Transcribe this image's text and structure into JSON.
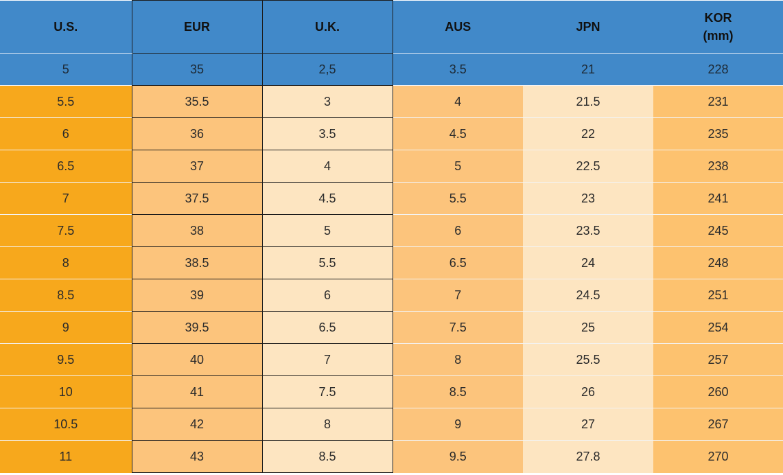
{
  "headers": {
    "us": "U.S.",
    "eur": "EUR",
    "uk": "U.K.",
    "aus": "AUS",
    "jpn": "JPN",
    "kor_line1": "KOR",
    "kor_line2": "(mm)"
  },
  "colors": {
    "header_blue": "#4189c9",
    "us_orange": "#f7a81c",
    "eur_peach": "#fcc47c",
    "uk_cream": "#fde5c1",
    "kor_orange": "#fdc26f"
  },
  "chart_data": {
    "type": "table",
    "columns": [
      "U.S.",
      "EUR",
      "U.K.",
      "AUS",
      "JPN",
      "KOR (mm)"
    ],
    "rows": [
      [
        "5",
        "35",
        "2,5",
        "3.5",
        "21",
        "228"
      ],
      [
        "5.5",
        "35.5",
        "3",
        "4",
        "21.5",
        "231"
      ],
      [
        "6",
        "36",
        "3.5",
        "4.5",
        "22",
        "235"
      ],
      [
        "6.5",
        "37",
        "4",
        "5",
        "22.5",
        "238"
      ],
      [
        "7",
        "37.5",
        "4.5",
        "5.5",
        "23",
        "241"
      ],
      [
        "7.5",
        "38",
        "5",
        "6",
        "23.5",
        "245"
      ],
      [
        "8",
        "38.5",
        "5.5",
        "6.5",
        "24",
        "248"
      ],
      [
        "8.5",
        "39",
        "6",
        "7",
        "24.5",
        "251"
      ],
      [
        "9",
        "39.5",
        "6.5",
        "7.5",
        "25",
        "254"
      ],
      [
        "9.5",
        "40",
        "7",
        "8",
        "25.5",
        "257"
      ],
      [
        "10",
        "41",
        "7.5",
        "8.5",
        "26",
        "260"
      ],
      [
        "10.5",
        "42",
        "8",
        "9",
        "27",
        "267"
      ],
      [
        "11",
        "43",
        "8.5",
        "9.5",
        "27.8",
        "270"
      ]
    ]
  }
}
